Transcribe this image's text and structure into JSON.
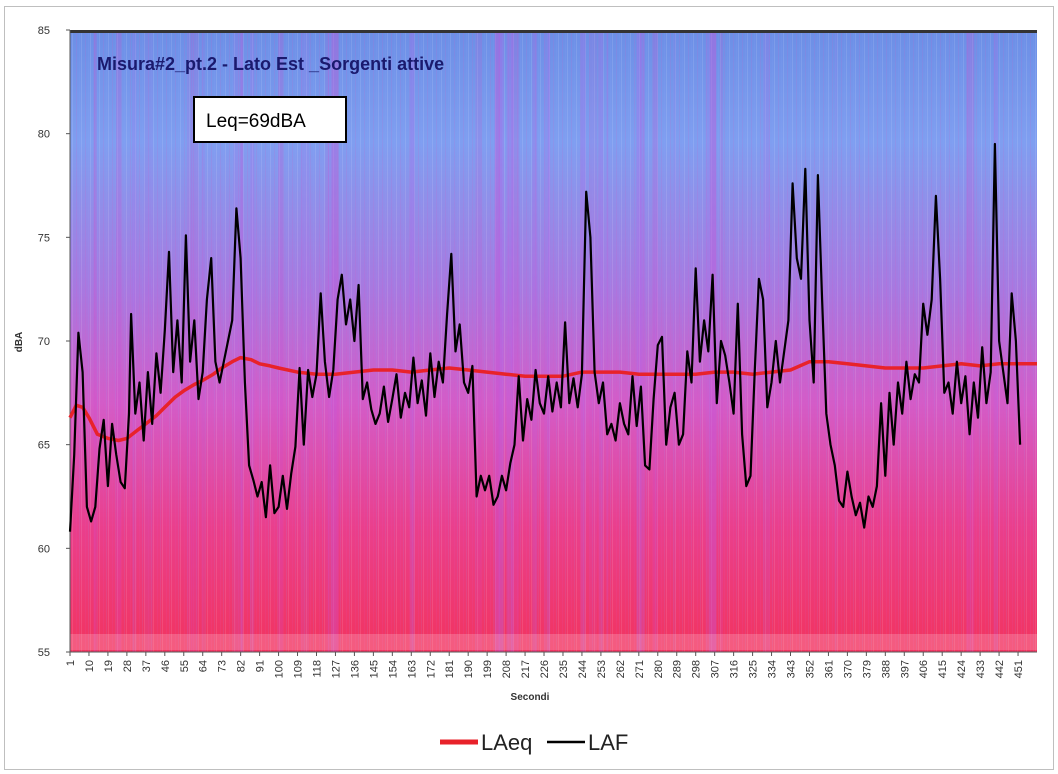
{
  "chart_data": {
    "type": "line",
    "title": "Misura#2_pt.2 - Lato Est _Sorgenti attive",
    "annotation": "Leq=69dBA",
    "xlabel": "Secondi",
    "ylabel": "dBA",
    "ylim": [
      55,
      85
    ],
    "yticks": [
      55,
      60,
      65,
      70,
      75,
      80,
      85
    ],
    "xlim": [
      1,
      460
    ],
    "xticks": [
      1,
      10,
      19,
      28,
      37,
      46,
      55,
      64,
      73,
      82,
      91,
      100,
      109,
      118,
      127,
      136,
      145,
      154,
      163,
      172,
      181,
      190,
      199,
      208,
      217,
      226,
      235,
      244,
      253,
      262,
      271,
      280,
      289,
      298,
      307,
      316,
      325,
      334,
      343,
      352,
      361,
      370,
      379,
      388,
      397,
      406,
      415,
      424,
      433,
      442,
      451
    ],
    "legend_position": "bottom",
    "grid": false,
    "series": [
      {
        "name": "LAeq",
        "color": "#e8222a",
        "points": [
          [
            1,
            66.3
          ],
          [
            4,
            66.9
          ],
          [
            7,
            66.8
          ],
          [
            10,
            66.3
          ],
          [
            14,
            65.5
          ],
          [
            19,
            65.3
          ],
          [
            24,
            65.2
          ],
          [
            28,
            65.3
          ],
          [
            33,
            65.7
          ],
          [
            37,
            66.0
          ],
          [
            42,
            66.4
          ],
          [
            46,
            66.8
          ],
          [
            51,
            67.3
          ],
          [
            55,
            67.6
          ],
          [
            60,
            67.9
          ],
          [
            64,
            68.1
          ],
          [
            69,
            68.4
          ],
          [
            73,
            68.7
          ],
          [
            78,
            69.0
          ],
          [
            82,
            69.2
          ],
          [
            87,
            69.1
          ],
          [
            91,
            68.9
          ],
          [
            96,
            68.8
          ],
          [
            100,
            68.7
          ],
          [
            109,
            68.5
          ],
          [
            118,
            68.4
          ],
          [
            127,
            68.4
          ],
          [
            136,
            68.5
          ],
          [
            145,
            68.6
          ],
          [
            154,
            68.6
          ],
          [
            163,
            68.5
          ],
          [
            172,
            68.6
          ],
          [
            181,
            68.7
          ],
          [
            190,
            68.6
          ],
          [
            199,
            68.5
          ],
          [
            208,
            68.4
          ],
          [
            217,
            68.3
          ],
          [
            226,
            68.3
          ],
          [
            235,
            68.3
          ],
          [
            244,
            68.5
          ],
          [
            253,
            68.5
          ],
          [
            262,
            68.5
          ],
          [
            271,
            68.4
          ],
          [
            280,
            68.4
          ],
          [
            289,
            68.4
          ],
          [
            298,
            68.4
          ],
          [
            307,
            68.5
          ],
          [
            316,
            68.5
          ],
          [
            325,
            68.4
          ],
          [
            334,
            68.5
          ],
          [
            343,
            68.6
          ],
          [
            352,
            69.0
          ],
          [
            361,
            69.0
          ],
          [
            370,
            68.9
          ],
          [
            379,
            68.8
          ],
          [
            388,
            68.7
          ],
          [
            397,
            68.7
          ],
          [
            406,
            68.7
          ],
          [
            415,
            68.8
          ],
          [
            424,
            68.9
          ],
          [
            433,
            68.8
          ],
          [
            442,
            68.9
          ],
          [
            451,
            68.9
          ],
          [
            460,
            68.9
          ]
        ]
      },
      {
        "name": "LAF",
        "color": "#000000",
        "points": [
          [
            1,
            60.8
          ],
          [
            3,
            64.5
          ],
          [
            5,
            70.4
          ],
          [
            7,
            68.5
          ],
          [
            9,
            62.0
          ],
          [
            11,
            61.3
          ],
          [
            13,
            62.0
          ],
          [
            15,
            64.8
          ],
          [
            17,
            66.2
          ],
          [
            19,
            63.0
          ],
          [
            21,
            66.0
          ],
          [
            23,
            64.5
          ],
          [
            25,
            63.2
          ],
          [
            27,
            62.9
          ],
          [
            29,
            66.5
          ],
          [
            30,
            71.3
          ],
          [
            32,
            66.5
          ],
          [
            34,
            68.0
          ],
          [
            36,
            65.2
          ],
          [
            38,
            68.5
          ],
          [
            40,
            66.0
          ],
          [
            42,
            69.4
          ],
          [
            44,
            67.5
          ],
          [
            46,
            70.5
          ],
          [
            48,
            74.3
          ],
          [
            50,
            68.5
          ],
          [
            52,
            71.0
          ],
          [
            54,
            68.0
          ],
          [
            56,
            75.1
          ],
          [
            58,
            69.0
          ],
          [
            60,
            71.0
          ],
          [
            62,
            67.2
          ],
          [
            64,
            68.5
          ],
          [
            66,
            72.0
          ],
          [
            68,
            74.0
          ],
          [
            70,
            69.0
          ],
          [
            72,
            68.0
          ],
          [
            74,
            69.0
          ],
          [
            76,
            70.0
          ],
          [
            78,
            71.0
          ],
          [
            80,
            76.4
          ],
          [
            82,
            74.0
          ],
          [
            84,
            68.0
          ],
          [
            86,
            64.0
          ],
          [
            88,
            63.3
          ],
          [
            90,
            62.5
          ],
          [
            92,
            63.2
          ],
          [
            94,
            61.5
          ],
          [
            96,
            64.0
          ],
          [
            98,
            61.7
          ],
          [
            100,
            62.0
          ],
          [
            102,
            63.5
          ],
          [
            104,
            61.9
          ],
          [
            106,
            63.6
          ],
          [
            108,
            64.9
          ],
          [
            110,
            68.7
          ],
          [
            112,
            65.0
          ],
          [
            114,
            68.6
          ],
          [
            116,
            67.3
          ],
          [
            118,
            68.4
          ],
          [
            120,
            72.3
          ],
          [
            122,
            69.0
          ],
          [
            124,
            67.3
          ],
          [
            126,
            68.6
          ],
          [
            128,
            72.0
          ],
          [
            130,
            73.2
          ],
          [
            132,
            70.8
          ],
          [
            134,
            72.0
          ],
          [
            136,
            70.0
          ],
          [
            138,
            72.7
          ],
          [
            140,
            67.2
          ],
          [
            142,
            68.0
          ],
          [
            144,
            66.7
          ],
          [
            146,
            66.0
          ],
          [
            148,
            66.5
          ],
          [
            150,
            67.8
          ],
          [
            152,
            66.1
          ],
          [
            154,
            67.2
          ],
          [
            156,
            68.4
          ],
          [
            158,
            66.3
          ],
          [
            160,
            67.5
          ],
          [
            162,
            66.8
          ],
          [
            164,
            69.2
          ],
          [
            166,
            67.0
          ],
          [
            168,
            68.1
          ],
          [
            170,
            66.4
          ],
          [
            172,
            69.4
          ],
          [
            174,
            67.3
          ],
          [
            176,
            69.0
          ],
          [
            178,
            68.0
          ],
          [
            180,
            71.3
          ],
          [
            182,
            74.2
          ],
          [
            184,
            69.5
          ],
          [
            186,
            70.8
          ],
          [
            188,
            68.0
          ],
          [
            190,
            67.5
          ],
          [
            192,
            68.8
          ],
          [
            194,
            62.5
          ],
          [
            196,
            63.5
          ],
          [
            198,
            62.8
          ],
          [
            200,
            63.5
          ],
          [
            202,
            62.1
          ],
          [
            204,
            62.5
          ],
          [
            206,
            63.5
          ],
          [
            208,
            62.8
          ],
          [
            210,
            64.1
          ],
          [
            212,
            65.0
          ],
          [
            214,
            68.3
          ],
          [
            216,
            65.2
          ],
          [
            218,
            67.2
          ],
          [
            220,
            66.2
          ],
          [
            222,
            68.6
          ],
          [
            224,
            67.0
          ],
          [
            226,
            66.5
          ],
          [
            228,
            68.3
          ],
          [
            230,
            66.6
          ],
          [
            232,
            68.0
          ],
          [
            234,
            66.8
          ],
          [
            236,
            70.9
          ],
          [
            238,
            67.0
          ],
          [
            240,
            68.2
          ],
          [
            242,
            66.8
          ],
          [
            244,
            68.4
          ],
          [
            246,
            77.2
          ],
          [
            248,
            75.0
          ],
          [
            250,
            68.5
          ],
          [
            252,
            67.0
          ],
          [
            254,
            68.0
          ],
          [
            256,
            65.5
          ],
          [
            258,
            66.0
          ],
          [
            260,
            65.2
          ],
          [
            262,
            67.0
          ],
          [
            264,
            66.0
          ],
          [
            266,
            65.5
          ],
          [
            268,
            68.3
          ],
          [
            270,
            65.9
          ],
          [
            272,
            67.8
          ],
          [
            274,
            64.0
          ],
          [
            276,
            63.8
          ],
          [
            278,
            67.2
          ],
          [
            280,
            69.8
          ],
          [
            282,
            70.2
          ],
          [
            284,
            65.0
          ],
          [
            286,
            66.8
          ],
          [
            288,
            67.5
          ],
          [
            290,
            65.0
          ],
          [
            292,
            65.5
          ],
          [
            294,
            69.5
          ],
          [
            296,
            68.0
          ],
          [
            298,
            73.5
          ],
          [
            300,
            69.0
          ],
          [
            302,
            71.0
          ],
          [
            304,
            69.5
          ],
          [
            306,
            73.2
          ],
          [
            308,
            67.0
          ],
          [
            310,
            70.0
          ],
          [
            312,
            69.3
          ],
          [
            314,
            68.0
          ],
          [
            316,
            66.5
          ],
          [
            318,
            71.8
          ],
          [
            320,
            65.5
          ],
          [
            322,
            63.0
          ],
          [
            324,
            63.5
          ],
          [
            326,
            68.5
          ],
          [
            328,
            73.0
          ],
          [
            330,
            72.0
          ],
          [
            332,
            66.8
          ],
          [
            334,
            68.0
          ],
          [
            336,
            70.0
          ],
          [
            338,
            68.0
          ],
          [
            340,
            69.5
          ],
          [
            342,
            71.0
          ],
          [
            344,
            77.6
          ],
          [
            346,
            74.0
          ],
          [
            348,
            73.0
          ],
          [
            350,
            78.3
          ],
          [
            352,
            71.0
          ],
          [
            354,
            68.0
          ],
          [
            356,
            78.0
          ],
          [
            358,
            72.0
          ],
          [
            360,
            66.5
          ],
          [
            362,
            65.0
          ],
          [
            364,
            64.0
          ],
          [
            366,
            62.3
          ],
          [
            368,
            62.0
          ],
          [
            370,
            63.7
          ],
          [
            372,
            62.5
          ],
          [
            374,
            61.6
          ],
          [
            376,
            62.2
          ],
          [
            378,
            61.0
          ],
          [
            380,
            62.5
          ],
          [
            382,
            62.0
          ],
          [
            384,
            63.0
          ],
          [
            386,
            67.0
          ],
          [
            388,
            63.5
          ],
          [
            390,
            67.5
          ],
          [
            392,
            65.0
          ],
          [
            394,
            68.0
          ],
          [
            396,
            66.5
          ],
          [
            398,
            69.0
          ],
          [
            400,
            67.2
          ],
          [
            402,
            68.4
          ],
          [
            404,
            68.0
          ],
          [
            406,
            71.8
          ],
          [
            408,
            70.3
          ],
          [
            410,
            72.0
          ],
          [
            412,
            77.0
          ],
          [
            414,
            73.0
          ],
          [
            416,
            67.5
          ],
          [
            418,
            68.0
          ],
          [
            420,
            66.5
          ],
          [
            422,
            69.0
          ],
          [
            424,
            67.0
          ],
          [
            426,
            68.3
          ],
          [
            428,
            65.5
          ],
          [
            430,
            68.0
          ],
          [
            432,
            66.3
          ],
          [
            434,
            69.7
          ],
          [
            436,
            67.0
          ],
          [
            438,
            68.5
          ],
          [
            440,
            79.5
          ],
          [
            442,
            70.0
          ],
          [
            444,
            68.5
          ],
          [
            446,
            67.0
          ],
          [
            448,
            72.3
          ],
          [
            450,
            70.0
          ],
          [
            452,
            65.0
          ]
        ]
      }
    ]
  },
  "legend": {
    "laeq_label": "LAeq",
    "laf_label": "LAF"
  },
  "colors": {
    "background_top": "#6f9bea",
    "background_mid": "#c45fd6",
    "background_bottom": "#f0386a",
    "laeq": "#e8222a",
    "laf": "#000000"
  }
}
